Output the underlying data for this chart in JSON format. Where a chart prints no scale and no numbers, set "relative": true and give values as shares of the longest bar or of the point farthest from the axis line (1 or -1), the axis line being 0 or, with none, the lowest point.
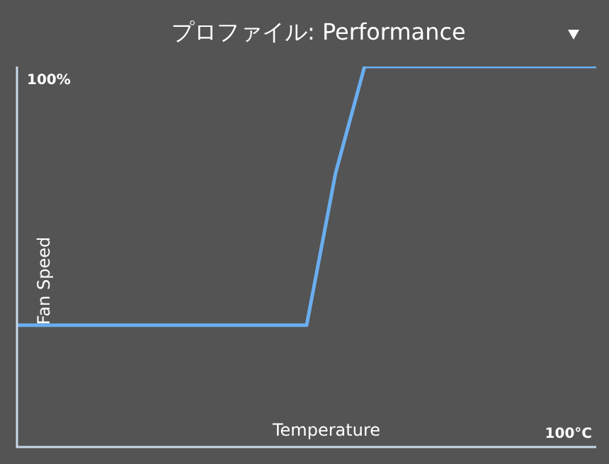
{
  "chart_data": {
    "type": "line",
    "title": "プロファイル: Performance",
    "xlabel": "Temperature",
    "ylabel": "Fan Speed",
    "relative": true,
    "categories": [
      null,
      null,
      null,
      null,
      null,
      null,
      null,
      null,
      null,
      null,
      null,
      null,
      null,
      null,
      null,
      null,
      null,
      null,
      null,
      null,
      null
    ],
    "series": [
      {
        "color": "#6aaef0",
        "values": [
          0.32,
          0.32,
          0.32,
          0.32,
          0.32,
          0.32,
          0.32,
          0.32,
          0.32,
          0.32,
          0.32,
          0.72,
          1,
          1,
          1,
          1,
          1,
          1,
          1,
          1,
          1
        ]
      }
    ],
    "annotations": [
      "100%",
      "100°C"
    ],
    "legend": false,
    "marker": "none",
    "line_style": "solid"
  }
}
